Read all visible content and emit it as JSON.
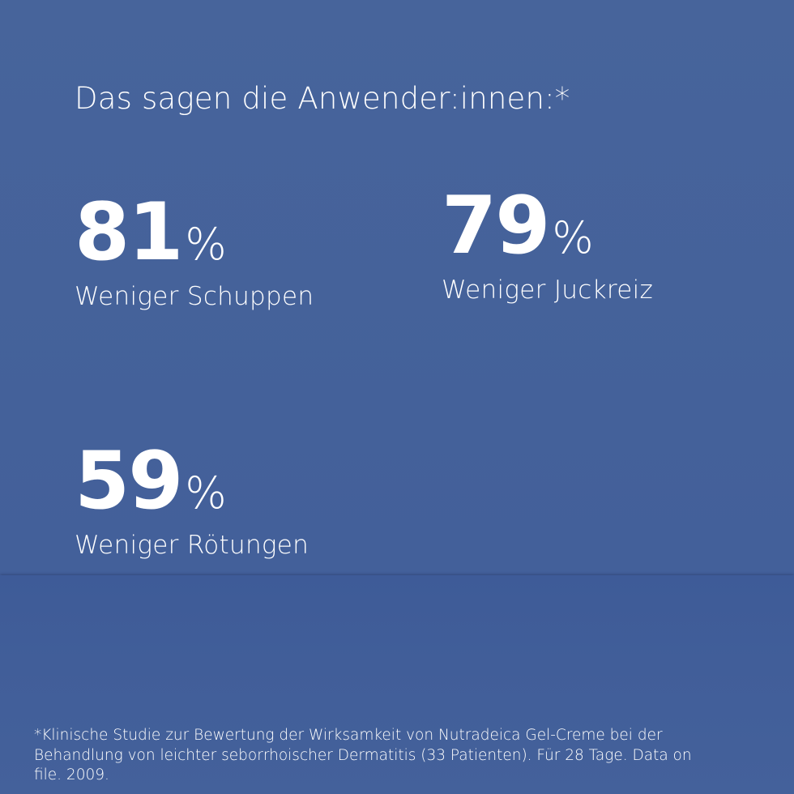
{
  "title": "Das sagen die Anwender:innen:*",
  "stats": [
    {
      "value": 81,
      "unit": "%",
      "label": "Weniger Schuppen"
    },
    {
      "value": 79,
      "unit": "%",
      "label": "Weniger Juckreiz"
    },
    {
      "value": 59,
      "unit": "%",
      "label": "Weniger Rötungen"
    }
  ],
  "footnote": [
    "*Klinische Studie zur Bewertung der Wirksamkeit von Nutradeica Gel-Creme bei der",
    "Behandlung von leichter seborrhoischer Dermatitis (33 Patienten). Für 28 Tage. Data on",
    "file. 2009."
  ]
}
